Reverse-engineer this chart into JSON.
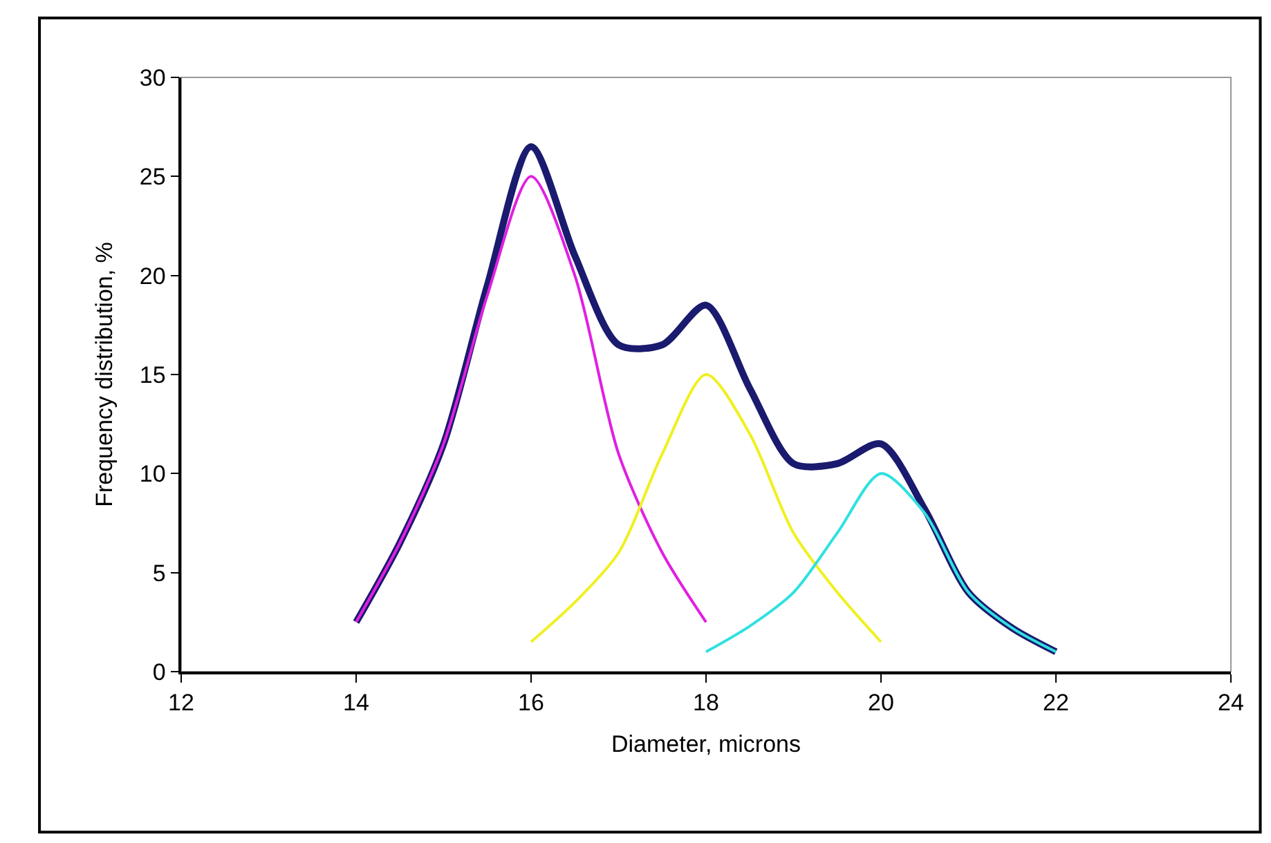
{
  "chart_data": {
    "type": "line",
    "xlabel": "Diameter, microns",
    "ylabel": "Frequency distribution, %",
    "xlim": [
      12,
      24
    ],
    "xticks": [
      12,
      14,
      16,
      18,
      20,
      22,
      24
    ],
    "ylim": [
      0,
      30
    ],
    "yticks": [
      0,
      5,
      10,
      15,
      20,
      25,
      30
    ],
    "grid": false,
    "marker": "none",
    "line_style": "solid",
    "series": [
      {
        "color": "#1a1a6e",
        "x": [
          14,
          14.5,
          15,
          15.5,
          16,
          16.5,
          17,
          17.5,
          18,
          18.5,
          19,
          19.5,
          20,
          20.5,
          21,
          21.5,
          22
        ],
        "values": [
          2.5,
          6.5,
          11.5,
          19.5,
          26.5,
          21,
          16.5,
          16.5,
          18.5,
          14.3,
          10.5,
          10.5,
          11.5,
          8.2,
          4,
          2.2,
          1
        ]
      },
      {
        "color": "#e020e0",
        "x": [
          14,
          14.5,
          15,
          15.5,
          16,
          16.5,
          17,
          17.5,
          18
        ],
        "values": [
          2.5,
          6.5,
          11.5,
          19,
          25,
          20,
          11,
          6,
          2.5
        ]
      },
      {
        "color": "#f0f020",
        "x": [
          16,
          16.5,
          17,
          17.5,
          18,
          18.5,
          19,
          19.5,
          20
        ],
        "values": [
          1.5,
          3.5,
          6,
          11,
          15,
          12,
          7,
          4,
          1.5
        ]
      },
      {
        "color": "#30e0e0",
        "x": [
          18,
          18.5,
          19,
          19.5,
          20,
          20.5,
          21,
          21.5,
          22
        ],
        "values": [
          1,
          2.3,
          4,
          7,
          10,
          8,
          4,
          2.2,
          1
        ]
      }
    ]
  }
}
